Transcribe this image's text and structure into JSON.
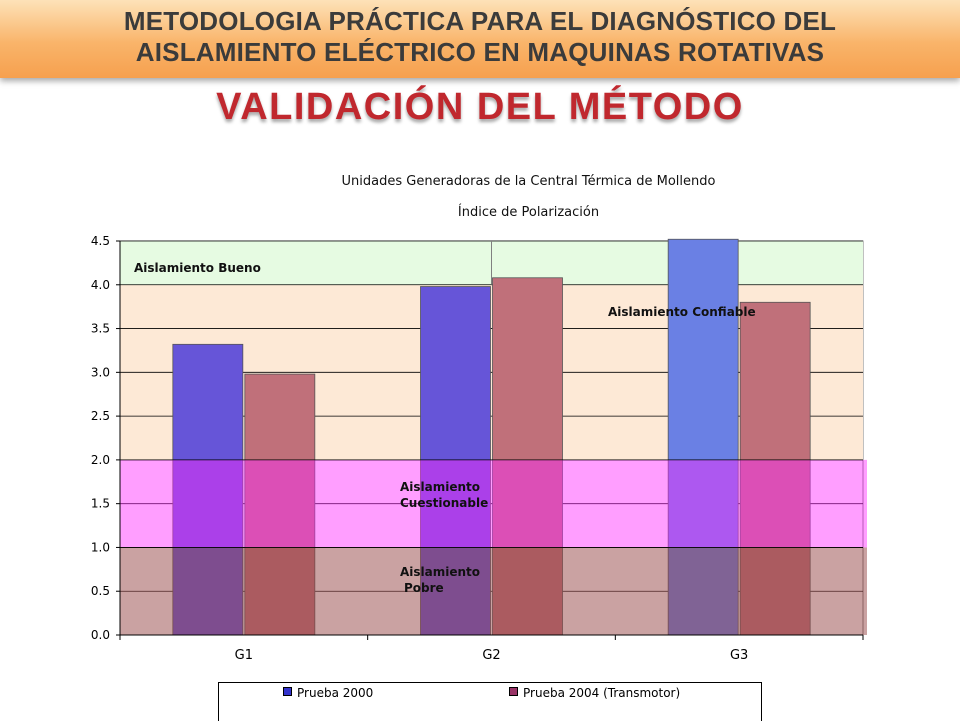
{
  "header": {
    "line1": "METODOLOGIA PRÁCTICA PARA EL DIAGNÓSTICO DEL",
    "line2": "AISLAMIENTO ELÉCTRICO EN MAQUINAS ROTATIVAS"
  },
  "subtitle": "VALIDACIÓN DEL MÉTODO",
  "chart_data": {
    "type": "bar",
    "title": "Unidades Generadoras de la Central Térmica de Mollendo",
    "subtitle": "Índice de Polarización",
    "categories": [
      "G1",
      "G2",
      "G3"
    ],
    "series": [
      {
        "name": "Prueba 2000",
        "values": [
          3.32,
          3.98,
          4.52
        ],
        "color": "#3333cc"
      },
      {
        "name": "Prueba 2004 (Transmotor)",
        "values": [
          2.98,
          4.08,
          3.8
        ],
        "color": "#993366"
      }
    ],
    "ylim": [
      0,
      4.5
    ],
    "yticks": [
      "0.0",
      "0.5",
      "1.0",
      "1.5",
      "2.0",
      "2.5",
      "3.0",
      "3.5",
      "4.0",
      "4.5"
    ],
    "grid": true,
    "legend": "bottom",
    "zones": [
      {
        "label_lines": [
          "Aislamiento",
          "Pobre"
        ],
        "from": 0,
        "to": 1.0,
        "color": "#c89898"
      },
      {
        "label_lines": [
          "Aislamiento",
          "Cuestionable"
        ],
        "from": 1.0,
        "to": 2.0,
        "color": "#ff8cff"
      },
      {
        "label_lines": [
          "Aislamiento Confiable"
        ],
        "from": 2.0,
        "to": 4.0,
        "color": "#fde9d6"
      },
      {
        "label_lines": [
          "Aislamiento Bueno"
        ],
        "from": 4.0,
        "to": 4.5,
        "color": "#e6fbe2"
      }
    ]
  }
}
